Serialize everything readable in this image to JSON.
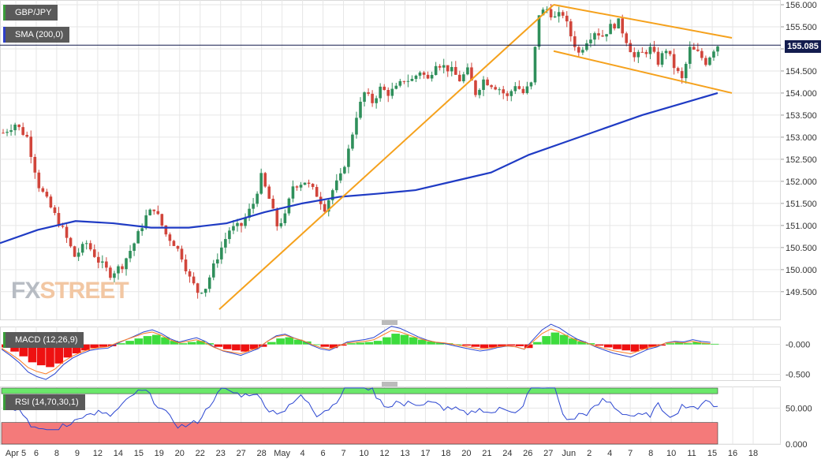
{
  "legend": {
    "symbol": "GBP/JPY",
    "sma": "SMA (200,0)",
    "macd": "MACD (12,26,9)",
    "rsi": "RSI (14,70,30,1)"
  },
  "watermark": {
    "fx": "FX",
    "street": "STREET"
  },
  "last_price_label": "155.085",
  "colors": {
    "up": "#2f8f5b",
    "down": "#d1453b",
    "sma": "#1f3bc4",
    "channel": "#f5a11c",
    "macd_pos": "#3ddc3d",
    "macd_neg": "#ee1111",
    "rsi_upper": "#6be86b",
    "rsi_lower": "#f47a7a",
    "grid": "#e6e6e6",
    "last_price_line": "#131c4e"
  },
  "chart_data": [
    {
      "type": "candlestick",
      "title": "GBP/JPY",
      "ylim": [
        149.1,
        156.1
      ],
      "y_ticks": [
        "156.000",
        "155.500",
        "155.000",
        "154.500",
        "154.000",
        "153.500",
        "153.000",
        "152.500",
        "152.000",
        "151.500",
        "151.000",
        "150.500",
        "150.000",
        "149.500"
      ],
      "x_tick_labels": [
        "Apr 5",
        "6",
        "8",
        "9",
        "10",
        "12",
        "13",
        "14",
        "15",
        "16",
        "19",
        "20",
        "21",
        "22",
        "23",
        "26",
        "27",
        "28",
        "29",
        "30",
        "May",
        "4",
        "5",
        "6",
        "7",
        "10",
        "11",
        "12",
        "13",
        "14",
        "15",
        "16",
        "17",
        "18",
        "19",
        "20",
        "21",
        "22",
        "23",
        "24",
        "25",
        "26",
        "27",
        "28",
        "29",
        "30",
        "31",
        "Jun",
        "2",
        "3",
        "4",
        "5",
        "6",
        "7",
        "8",
        "9",
        "10",
        "11",
        "12",
        "13",
        "14",
        "15",
        "16",
        "17",
        "18"
      ],
      "x_tick_visible": [
        "Apr 5",
        "6",
        "8",
        "9",
        "10",
        "12",
        "13",
        "14",
        "15",
        "16",
        "19",
        "20",
        "21",
        "22",
        "23",
        "26",
        "27",
        "28",
        "29",
        "30",
        "May",
        "4",
        "5",
        "6",
        "7",
        "10",
        "11",
        "12",
        "13",
        "14",
        "15",
        "16",
        "17",
        "18",
        "19",
        "20",
        "21",
        "22",
        "23",
        "24",
        "25",
        "26",
        "27",
        "28",
        "29",
        "30",
        "31",
        "Jun",
        "2",
        "3",
        "4",
        "5",
        "6",
        "7",
        "8",
        "9",
        "10",
        "11",
        "12",
        "13",
        "14",
        "15",
        "16",
        "17",
        "18"
      ],
      "x_axis_labels": [
        "Apr 5",
        "6",
        "8",
        "9",
        "12",
        "14",
        "15",
        "19",
        "20",
        "22",
        "23",
        "27",
        "28",
        "May",
        "4",
        "6",
        "7",
        "10",
        "12",
        "13",
        "17",
        "18",
        "20",
        "21",
        "24",
        "26",
        "27",
        "Jun",
        "2",
        "4",
        "7",
        "8",
        "10",
        "11",
        "15",
        "16",
        "18"
      ],
      "close_path": [
        [
          0,
          153.1
        ],
        [
          3,
          153.3
        ],
        [
          6,
          153.0
        ],
        [
          9,
          151.9
        ],
        [
          12,
          151.4
        ],
        [
          15,
          150.9
        ],
        [
          18,
          150.3
        ],
        [
          21,
          150.6
        ],
        [
          24,
          150.2
        ],
        [
          27,
          149.9
        ],
        [
          30,
          150.1
        ],
        [
          33,
          150.6
        ],
        [
          36,
          151.2
        ],
        [
          38,
          151.4
        ],
        [
          41,
          150.8
        ],
        [
          43,
          150.6
        ],
        [
          45,
          150.3
        ],
        [
          47,
          149.8
        ],
        [
          49,
          149.5
        ],
        [
          51,
          149.6
        ],
        [
          54,
          150.3
        ],
        [
          57,
          150.9
        ],
        [
          60,
          151.0
        ],
        [
          63,
          151.5
        ],
        [
          65,
          152.1
        ],
        [
          67,
          151.6
        ],
        [
          69,
          151.0
        ],
        [
          71,
          151.2
        ],
        [
          73,
          151.9
        ],
        [
          76,
          152.0
        ],
        [
          79,
          151.7
        ],
        [
          81,
          151.4
        ],
        [
          83,
          151.8
        ],
        [
          85,
          152.1
        ],
        [
          87,
          152.7
        ],
        [
          89,
          153.5
        ],
        [
          91,
          154.0
        ],
        [
          93,
          153.8
        ],
        [
          95,
          154.1
        ],
        [
          97,
          154.0
        ],
        [
          99,
          154.1
        ],
        [
          101,
          154.3
        ],
        [
          103,
          154.3
        ],
        [
          105,
          154.5
        ],
        [
          107,
          154.3
        ],
        [
          109,
          154.7
        ],
        [
          111,
          154.6
        ],
        [
          113,
          154.5
        ],
        [
          115,
          154.3
        ],
        [
          117,
          154.5
        ],
        [
          119,
          154.0
        ],
        [
          121,
          154.3
        ],
        [
          123,
          154.2
        ],
        [
          125,
          154.1
        ],
        [
          127,
          153.9
        ],
        [
          129,
          154.2
        ],
        [
          131,
          154.0
        ],
        [
          133,
          154.2
        ],
        [
          135,
          155.8
        ],
        [
          137,
          155.9
        ],
        [
          139,
          155.7
        ],
        [
          141,
          155.8
        ],
        [
          143,
          155.3
        ],
        [
          145,
          154.9
        ],
        [
          147,
          155.2
        ],
        [
          149,
          155.4
        ],
        [
          151,
          155.3
        ],
        [
          153,
          155.5
        ],
        [
          155,
          155.6
        ],
        [
          157,
          155.2
        ],
        [
          159,
          154.8
        ],
        [
          161,
          154.9
        ],
        [
          163,
          155.0
        ],
        [
          165,
          154.7
        ],
        [
          167,
          155.0
        ],
        [
          169,
          154.6
        ],
        [
          171,
          154.3
        ],
        [
          173,
          155.0
        ],
        [
          175,
          154.9
        ],
        [
          177,
          154.7
        ],
        [
          179,
          155.0
        ],
        [
          180,
          155.085
        ]
      ],
      "sma_200": [
        [
          149.5,
          150.6
        ],
        [
          152,
          150.9
        ],
        [
          155,
          151.1
        ],
        [
          158,
          151.05
        ],
        [
          161,
          150.95
        ],
        [
          164,
          150.95
        ],
        [
          167,
          151.05
        ],
        [
          170,
          151.3
        ],
        [
          173,
          151.5
        ],
        [
          176,
          151.65
        ],
        [
          179,
          151.72
        ],
        [
          182,
          151.8
        ],
        [
          185,
          152.0
        ],
        [
          188,
          152.2
        ],
        [
          191,
          152.6
        ],
        [
          194,
          152.9
        ],
        [
          197,
          153.2
        ],
        [
          200,
          153.5
        ],
        [
          203,
          153.75
        ],
        [
          206,
          154.0
        ]
      ],
      "channel_lines": [
        {
          "name": "rising-support",
          "from": [
            "Apr 22",
            149.1
          ],
          "to": [
            "May 27",
            156.0
          ]
        },
        {
          "name": "falling-upper",
          "from": [
            "May 27",
            156.0
          ],
          "to": [
            "Jun 14",
            155.25
          ]
        },
        {
          "name": "falling-lower",
          "from": [
            "May 27",
            154.95
          ],
          "to": [
            "Jun 14",
            154.0
          ]
        }
      ],
      "last_price": 155.085
    },
    {
      "type": "bar",
      "title": "MACD (12,26,9)",
      "ylim": [
        -0.6,
        0.3
      ],
      "y_ticks": [
        "-0.000",
        "-0.500"
      ],
      "histogram": [
        -0.05,
        -0.12,
        -0.2,
        -0.3,
        -0.35,
        -0.38,
        -0.32,
        -0.22,
        -0.15,
        -0.1,
        -0.06,
        -0.04,
        -0.03,
        0.02,
        0.06,
        0.1,
        0.14,
        0.16,
        0.12,
        0.06,
        0.02,
        0.04,
        0.06,
        0.02,
        -0.04,
        -0.08,
        -0.1,
        -0.12,
        -0.08,
        -0.04,
        0.04,
        0.1,
        0.12,
        0.08,
        0.05,
        0.0,
        -0.04,
        -0.06,
        -0.02,
        0.02,
        0.03,
        0.04,
        0.06,
        0.12,
        0.18,
        0.16,
        0.12,
        0.08,
        0.05,
        0.03,
        0.02,
        0.0,
        -0.02,
        -0.04,
        -0.06,
        -0.05,
        -0.03,
        -0.02,
        -0.03,
        -0.06,
        0.04,
        0.14,
        0.2,
        0.16,
        0.1,
        0.05,
        0.02,
        -0.02,
        -0.05,
        -0.08,
        -0.1,
        -0.12,
        -0.08,
        -0.04,
        -0.02,
        0.02,
        0.03,
        0.02,
        0.04,
        0.02,
        0.01
      ]
    },
    {
      "type": "line",
      "title": "RSI (14,70,30,1)",
      "ylim": [
        0,
        80
      ],
      "y_ticks": [
        "50.000",
        "0.000"
      ],
      "upper_band": 70,
      "lower_band": 30
    }
  ]
}
